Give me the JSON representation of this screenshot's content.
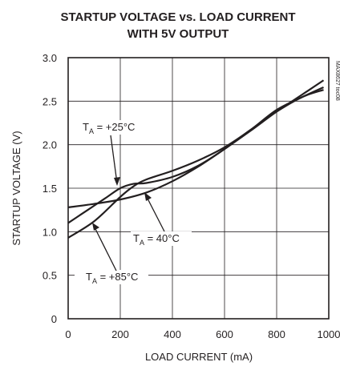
{
  "chart_data": {
    "type": "line",
    "title_line1": "STARTUP VOLTAGE vs. LOAD CURRENT",
    "title_line2": "WITH 5V OUTPUT",
    "xlabel": "LOAD CURRENT (mA)",
    "ylabel": "STARTUP VOLTAGE (V)",
    "xlim": [
      0,
      1000
    ],
    "ylim": [
      0,
      3.0
    ],
    "x_ticks": [
      "0",
      "200",
      "400",
      "600",
      "800",
      "1000"
    ],
    "y_ticks": [
      "0",
      "0.5",
      "1.0",
      "1.5",
      "2.0",
      "2.5",
      "3.0"
    ],
    "grid": true,
    "part_code": "MAX8627 toc08",
    "series": [
      {
        "name": "TA = +25°C",
        "x": [
          0,
          50,
          100,
          150,
          200,
          250,
          300,
          400,
          500,
          600,
          700,
          800,
          900,
          980
        ],
        "y": [
          1.1,
          1.2,
          1.3,
          1.4,
          1.5,
          1.55,
          1.56,
          1.63,
          1.76,
          1.95,
          2.17,
          2.38,
          2.55,
          2.63
        ]
      },
      {
        "name": "TA = 40°C",
        "x": [
          0,
          100,
          200,
          300,
          400,
          500,
          600,
          700,
          800,
          900,
          980
        ],
        "y": [
          1.28,
          1.32,
          1.37,
          1.45,
          1.58,
          1.75,
          1.95,
          2.16,
          2.38,
          2.58,
          2.74
        ]
      },
      {
        "name": "TA = +85°C",
        "x": [
          0,
          100,
          200,
          250,
          300,
          400,
          500,
          600,
          700,
          800,
          900,
          980
        ],
        "y": [
          0.93,
          1.12,
          1.4,
          1.52,
          1.6,
          1.7,
          1.82,
          1.97,
          2.17,
          2.4,
          2.55,
          2.66
        ]
      }
    ],
    "annotations": [
      {
        "main": "T",
        "sub": "A",
        "rest": " = +25°C",
        "series": 0
      },
      {
        "main": "T",
        "sub": "A",
        "rest": " = 40°C",
        "series": 1
      },
      {
        "main": "T",
        "sub": "A",
        "rest": " = +85°C",
        "series": 2
      }
    ]
  }
}
